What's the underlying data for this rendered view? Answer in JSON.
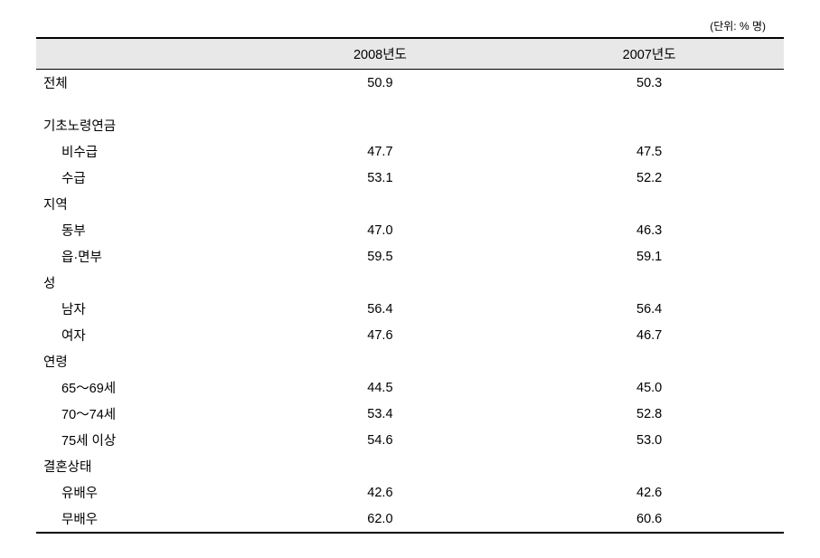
{
  "unit": "(단위: % 명)",
  "columns": {
    "label": "",
    "year2008": "2008년도",
    "year2007": "2007년도"
  },
  "rows": {
    "total": {
      "label": "전체",
      "v2008": "50.9",
      "v2007": "50.3"
    },
    "pension": {
      "header": "기초노령연금",
      "nonrecipient": {
        "label": "비수급",
        "v2008": "47.7",
        "v2007": "47.5"
      },
      "recipient": {
        "label": "수급",
        "v2008": "53.1",
        "v2007": "52.2"
      }
    },
    "region": {
      "header": "지역",
      "dong": {
        "label": "동부",
        "v2008": "47.0",
        "v2007": "46.3"
      },
      "eup": {
        "label": "읍·면부",
        "v2008": "59.5",
        "v2007": "59.1"
      }
    },
    "sex": {
      "header": "성",
      "male": {
        "label": "남자",
        "v2008": "56.4",
        "v2007": "56.4"
      },
      "female": {
        "label": "여자",
        "v2008": "47.6",
        "v2007": "46.7"
      }
    },
    "age": {
      "header": "연령",
      "a6569": {
        "label": "65～69세",
        "v2008": "44.5",
        "v2007": "45.0"
      },
      "a7074": {
        "label": "70～74세",
        "v2008": "53.4",
        "v2007": "52.8"
      },
      "a75": {
        "label": "75세 이상",
        "v2008": "54.6",
        "v2007": "53.0"
      }
    },
    "marital": {
      "header": "결혼상태",
      "married": {
        "label": "유배우",
        "v2008": "42.6",
        "v2007": "42.6"
      },
      "single": {
        "label": "무배우",
        "v2008": "62.0",
        "v2007": "60.6"
      }
    }
  }
}
